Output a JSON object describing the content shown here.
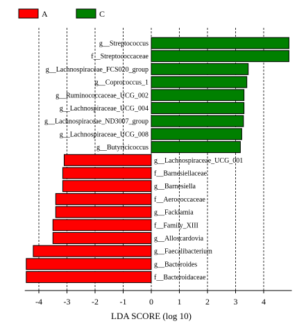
{
  "chart_data": {
    "type": "bar",
    "orientation": "horizontal",
    "xlabel": "LDA SCORE (log 10)",
    "xlim": [
      -4.5,
      5
    ],
    "xticks": [
      -4,
      -3,
      -2,
      -1,
      0,
      1,
      2,
      3,
      4
    ],
    "grid": "vertical-dashed",
    "legend_position": "top-left",
    "series": [
      {
        "name": "A",
        "color": "#ff0000"
      },
      {
        "name": "C",
        "color": "#008000"
      }
    ],
    "bars": [
      {
        "label": "g__Streptococcus",
        "value": 4.9,
        "group": "C"
      },
      {
        "label": "f__Streptococcaceae",
        "value": 4.9,
        "group": "C"
      },
      {
        "label": "g__Lachnospiraceae_FCS020_group",
        "value": 3.45,
        "group": "C"
      },
      {
        "label": "g__Coprococcus_1",
        "value": 3.4,
        "group": "C"
      },
      {
        "label": "g__Ruminococcaceae_UCG_002",
        "value": 3.3,
        "group": "C"
      },
      {
        "label": "g__Lachnospiraceae_UCG_004",
        "value": 3.3,
        "group": "C"
      },
      {
        "label": "g__Lachnospiraceae_ND3007_group",
        "value": 3.28,
        "group": "C"
      },
      {
        "label": "g__Lachnospiraceae_UCG_008",
        "value": 3.22,
        "group": "C"
      },
      {
        "label": "g__Butyricicoccus",
        "value": 3.17,
        "group": "C"
      },
      {
        "label": "g__Lachnospiraceae_UCG_001",
        "value": -3.1,
        "group": "A"
      },
      {
        "label": "f__Barnesiellaceae",
        "value": -3.15,
        "group": "A"
      },
      {
        "label": "g__Barnesiella",
        "value": -3.15,
        "group": "A"
      },
      {
        "label": "f__Aerococcaceae",
        "value": -3.4,
        "group": "A"
      },
      {
        "label": "g__Facklamia",
        "value": -3.4,
        "group": "A"
      },
      {
        "label": "f__Family_XIII",
        "value": -3.5,
        "group": "A"
      },
      {
        "label": "g__Alloscardovia",
        "value": -3.5,
        "group": "A"
      },
      {
        "label": "g__Faecalibacterium",
        "value": -4.2,
        "group": "A"
      },
      {
        "label": "g__Bacteroides",
        "value": -4.45,
        "group": "A"
      },
      {
        "label": "f__Bacteroidaceae",
        "value": -4.45,
        "group": "A"
      }
    ]
  }
}
